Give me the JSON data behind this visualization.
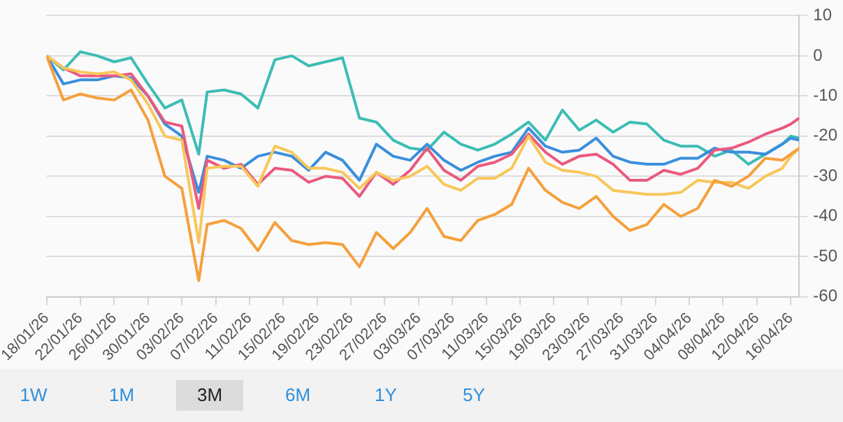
{
  "chart_data": {
    "type": "line",
    "x": [
      "--01-18",
      "--01-20",
      "--01-22",
      "--01-24",
      "--01-26",
      "--01-28",
      "--01-30",
      "--02-01",
      "--02-03",
      "--02-05",
      "--02-06",
      "--02-08",
      "--02-10",
      "--02-12",
      "--02-14",
      "--02-16",
      "--02-18",
      "--02-20",
      "--02-22",
      "--02-24",
      "--02-26",
      "--02-28",
      "--03-02",
      "--03-04",
      "--03-06",
      "--03-08",
      "--03-10",
      "--03-12",
      "--03-14",
      "--03-16",
      "--03-18",
      "--03-20",
      "--03-22",
      "--03-24",
      "--03-26",
      "--03-28",
      "--03-30",
      "--04-01",
      "--04-03",
      "--04-05",
      "--04-07",
      "--04-09",
      "--04-11",
      "--04-13",
      "--04-15",
      "--04-16",
      "--04-17"
    ],
    "series": [
      {
        "color": "#f5a03c",
        "values": [
          0,
          -11,
          -9.5,
          -10.5,
          -11,
          -8.5,
          -16,
          -30,
          -33,
          -56,
          -42,
          -41,
          -43,
          -48.5,
          -41.5,
          -46,
          -47,
          -46.5,
          -47,
          -52.5,
          -44,
          -48,
          -44,
          -38,
          -45,
          -46,
          -41,
          -39.5,
          -37,
          -28,
          -33.5,
          -36.5,
          -38,
          -35,
          -40,
          -43.5,
          -42,
          -37,
          -40,
          -38,
          -31,
          -32.5,
          -30,
          -25.5,
          -26,
          -24.5,
          -23
        ]
      },
      {
        "color": "#f7c75a",
        "values": [
          0,
          -3,
          -4,
          -4.5,
          -4,
          -6,
          -12,
          -20,
          -21,
          -46.5,
          -28,
          -27.5,
          -27.5,
          -32.5,
          -22.5,
          -24,
          -28,
          -28,
          -29,
          -33,
          -29,
          -31,
          -30,
          -27.5,
          -32,
          -33.5,
          -30.5,
          -30.5,
          -28,
          -20,
          -26.5,
          -28.5,
          -29,
          -30,
          -33.5,
          -34,
          -34.5,
          -34.5,
          -34,
          -31,
          -31.5,
          -31.5,
          -33,
          -30,
          -28,
          -25,
          -23
        ]
      },
      {
        "color": "#ea5a7e",
        "values": [
          0,
          -3,
          -5,
          -5,
          -5,
          -4.5,
          -10,
          -16.5,
          -17.5,
          -38,
          -26,
          -28,
          -27,
          -32,
          -28,
          -28.5,
          -31.5,
          -30,
          -30.5,
          -35,
          -29,
          -32,
          -28.5,
          -23,
          -28.5,
          -31,
          -27.5,
          -26.5,
          -24.5,
          -19.5,
          -24,
          -27,
          -25,
          -24.5,
          -27,
          -31,
          -31,
          -28.5,
          -29.5,
          -28,
          -23.5,
          -23,
          -21.5,
          -19.5,
          -18,
          -17,
          -15.5
        ]
      },
      {
        "color": "#3a8fdc",
        "values": [
          0,
          -7,
          -6,
          -6,
          -5,
          -5.5,
          -10,
          -17,
          -20,
          -34,
          -25,
          -26,
          -28,
          -25,
          -24,
          -25,
          -28.5,
          -24,
          -26,
          -31,
          -22,
          -25,
          -26,
          -22,
          -26,
          -28.5,
          -26.5,
          -25,
          -24,
          -18,
          -22.5,
          -24,
          -23.5,
          -20.5,
          -25,
          -26.5,
          -27,
          -27,
          -25.5,
          -25.5,
          -23,
          -24,
          -24,
          -24.5,
          -22,
          -20.5,
          -21
        ]
      },
      {
        "color": "#3dbdb5",
        "values": [
          0,
          -3.5,
          1,
          0,
          -1.5,
          -0.5,
          -7,
          -13,
          -11,
          -24.5,
          -9,
          -8.5,
          -9.5,
          -13,
          -1,
          0,
          -2.5,
          -1.5,
          -0.5,
          -15.5,
          -16.5,
          -21,
          -23,
          -23.5,
          -19,
          -22,
          -23.5,
          -22,
          -19.5,
          -16.5,
          -21,
          -13.5,
          -18.5,
          -16,
          -19,
          -16.5,
          -17,
          -21,
          -22.5,
          -22.5,
          -25,
          -23.5,
          -27,
          -24.5,
          -22,
          -20,
          -20.5
        ]
      }
    ],
    "xlim": [
      "--01-18",
      "--04-17"
    ],
    "xticks": [
      {
        "value": "--01-18",
        "label": "18/01/26"
      },
      {
        "value": "--01-22",
        "label": "22/01/26"
      },
      {
        "value": "--01-26",
        "label": "26/01/26"
      },
      {
        "value": "--01-30",
        "label": "30/01/26"
      },
      {
        "value": "--02-03",
        "label": "03/02/26"
      },
      {
        "value": "--02-07",
        "label": "07/02/26"
      },
      {
        "value": "--02-11",
        "label": "11/02/26"
      },
      {
        "value": "--02-15",
        "label": "15/02/26"
      },
      {
        "value": "--02-19",
        "label": "19/02/26"
      },
      {
        "value": "--02-23",
        "label": "23/02/26"
      },
      {
        "value": "--02-27",
        "label": "27/02/26"
      },
      {
        "value": "--03-03",
        "label": "03/03/26"
      },
      {
        "value": "--03-07",
        "label": "07/03/26"
      },
      {
        "value": "--03-11",
        "label": "11/03/26"
      },
      {
        "value": "--03-15",
        "label": "15/03/26"
      },
      {
        "value": "--03-19",
        "label": "19/03/26"
      },
      {
        "value": "--03-23",
        "label": "23/03/26"
      },
      {
        "value": "--03-27",
        "label": "27/03/26"
      },
      {
        "value": "--03-31",
        "label": "31/03/26"
      },
      {
        "value": "--04-04",
        "label": "04/04/26"
      },
      {
        "value": "--04-08",
        "label": "08/04/26"
      },
      {
        "value": "--04-12",
        "label": "12/04/26"
      },
      {
        "value": "--04-16",
        "label": "16/04/26"
      }
    ],
    "ylim": [
      -60,
      10
    ],
    "yticks": [
      -60,
      -50,
      -40,
      -30,
      -20,
      -10,
      0,
      10
    ],
    "grid": "y",
    "legend": false,
    "marker": "none",
    "line_style": "solid",
    "annotations": [
      "1W",
      "1M",
      "3M",
      "6M",
      "1Y",
      "5Y"
    ]
  }
}
